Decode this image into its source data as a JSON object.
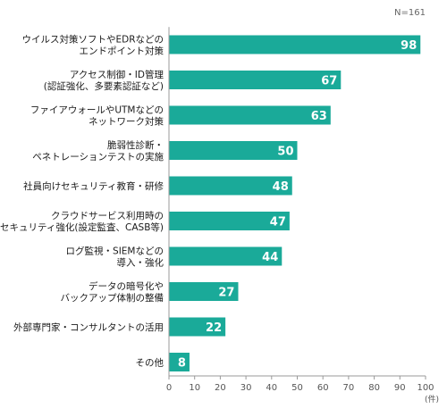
{
  "chart_data": {
    "type": "bar",
    "orientation": "horizontal",
    "note": "N=161",
    "unit": "(件)",
    "categories": [
      [
        "ウイルス対策ソフトやEDRなどの",
        "エンドポイント対策"
      ],
      [
        "アクセス制御・ID管理",
        "(認証強化、多要素認証など)"
      ],
      [
        "ファイアウォールやUTMなどの",
        "ネットワーク対策"
      ],
      [
        "脆弱性診断・",
        "ペネトレーションテストの実施"
      ],
      [
        "社員向けセキュリティ教育・研修"
      ],
      [
        "クラウドサービス利用時の",
        "セキュリティ強化(設定監査、CASB等)"
      ],
      [
        "ログ監視・SIEMなどの",
        "導入・強化"
      ],
      [
        "データの暗号化や",
        "バックアップ体制の整備"
      ],
      [
        "外部専門家・コンサルタントの活用"
      ],
      [
        "その他"
      ]
    ],
    "values": [
      98,
      67,
      63,
      50,
      48,
      47,
      44,
      27,
      22,
      8
    ],
    "xlim": [
      0,
      100
    ],
    "xticks": [
      0,
      10,
      20,
      30,
      40,
      50,
      60,
      70,
      80,
      90,
      100
    ],
    "grid": false,
    "legend": "none",
    "colors": {
      "bar": "#1aaa99",
      "label_text": "#1a1a1a",
      "value_text": "#ffffff",
      "axis": "#999999",
      "tick_text": "#555555",
      "note_text": "#666666"
    }
  }
}
